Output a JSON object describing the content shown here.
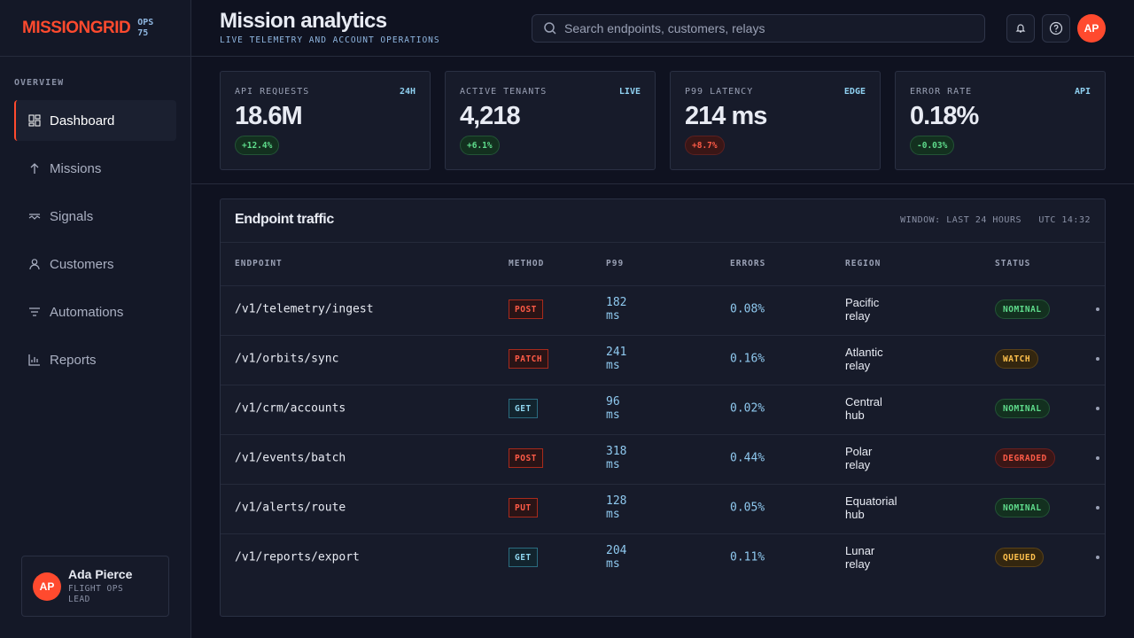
{
  "brand": {
    "name": "MISSIONGRID",
    "tag": "OPS 75"
  },
  "nav": {
    "section": "OVERVIEW",
    "items": [
      "Dashboard",
      "Missions",
      "Signals",
      "Customers",
      "Automations",
      "Reports"
    ]
  },
  "user": {
    "initials": "AP",
    "name": "Ada Pierce",
    "role": "FLIGHT OPS LEAD"
  },
  "header": {
    "title": "Mission analytics",
    "subtitle": "LIVE TELEMETRY AND ACCOUNT OPERATIONS",
    "search": "Search endpoints, customers, relays",
    "avatar": "AP"
  },
  "kpis": [
    {
      "label": "API REQUESTS",
      "tag": "24H",
      "value": "18.6M",
      "delta": "+12.4%"
    },
    {
      "label": "ACTIVE TENANTS",
      "tag": "LIVE",
      "value": "4,218",
      "delta": "+6.1%"
    },
    {
      "label": "P99 LATENCY",
      "tag": "EDGE",
      "value": "214 ms",
      "delta": "+8.7%"
    },
    {
      "label": "ERROR RATE",
      "tag": "API",
      "value": "0.18%",
      "delta": "-0.03%"
    }
  ],
  "table": {
    "title": "Endpoint traffic",
    "window": "WINDOW: LAST 24 HOURS",
    "time": "UTC 14:32",
    "columns": [
      "ENDPOINT",
      "METHOD",
      "P99",
      "ERRORS",
      "REGION",
      "STATUS"
    ],
    "rows": [
      [
        "/v1/telemetry/ingest",
        "POST",
        "182 ms",
        "0.08%",
        "Pacific relay",
        "NOMINAL"
      ],
      [
        "/v1/orbits/sync",
        "PATCH",
        "241 ms",
        "0.16%",
        "Atlantic relay",
        "WATCH"
      ],
      [
        "/v1/crm/accounts",
        "GET",
        "96 ms",
        "0.02%",
        "Central hub",
        "NOMINAL"
      ],
      [
        "/v1/events/batch",
        "POST",
        "318 ms",
        "0.44%",
        "Polar relay",
        "DEGRADED"
      ],
      [
        "/v1/alerts/route",
        "PUT",
        "128 ms",
        "0.05%",
        "Equatorial hub",
        "NOMINAL"
      ],
      [
        "/v1/reports/export",
        "GET",
        "204 ms",
        "0.11%",
        "Lunar relay",
        "QUEUED"
      ]
    ]
  }
}
